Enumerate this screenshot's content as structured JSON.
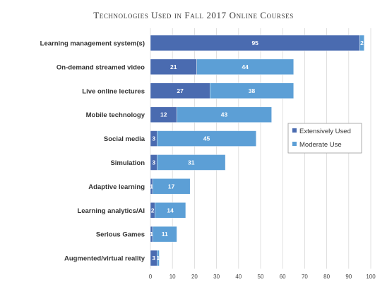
{
  "chart_data": {
    "type": "bar",
    "orientation": "horizontal",
    "stacked": true,
    "title": "Technologies Used in Fall 2017 Online Courses",
    "categories": [
      "Learning management system(s)",
      "On-demand streamed video",
      "Live online lectures",
      "Mobile technology",
      "Social media",
      "Simulation",
      "Adaptive learning",
      "Learning analytics/AI",
      "Serious Games",
      "Augmented/virtual reality"
    ],
    "series": [
      {
        "name": "Extensively Used",
        "color": "#4a6bb0",
        "values": [
          95,
          21,
          27,
          12,
          3,
          3,
          1,
          2,
          1,
          3
        ]
      },
      {
        "name": "Moderate Use",
        "color": "#5c9fd6",
        "values": [
          2,
          44,
          38,
          43,
          45,
          31,
          17,
          14,
          11,
          1
        ]
      }
    ],
    "xticks": [
      0,
      10,
      20,
      30,
      40,
      50,
      60,
      70,
      80,
      90,
      100
    ],
    "xlim": [
      0,
      100
    ],
    "grid": "vertical",
    "legend_position": "right"
  }
}
